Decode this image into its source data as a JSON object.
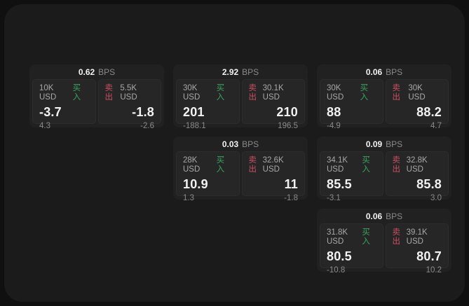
{
  "theme": {
    "outer_bg": "#101010",
    "panel_bg": "#1b1b1b",
    "card_bg": "#212121",
    "tile_bg": "#262626",
    "tile_border": "#2d2d2d",
    "text_primary": "#f2f2f2",
    "text_secondary": "#a8a8a8",
    "text_dim": "#8a8a8a",
    "buy_color": "#3aa560",
    "sell_color": "#cc4f63"
  },
  "labels": {
    "bps_unit": "BPS",
    "buy": "买入",
    "sell": "卖出"
  },
  "cards": [
    {
      "bps": "0.62",
      "buy": {
        "size": "10K USD",
        "value": "-3.7",
        "sub": "4.3"
      },
      "sell": {
        "size": "5.5K USD",
        "value": "-1.8",
        "sub": "-2.6"
      }
    },
    {
      "bps": "2.92",
      "buy": {
        "size": "30K USD",
        "value": "201",
        "sub": "-188.1"
      },
      "sell": {
        "size": "30.1K USD",
        "value": "210",
        "sub": "196.5"
      }
    },
    {
      "bps": "0.06",
      "buy": {
        "size": "30K USD",
        "value": "88",
        "sub": "-4.9"
      },
      "sell": {
        "size": "30K USD",
        "value": "88.2",
        "sub": "4.7"
      }
    },
    {
      "bps": "0.03",
      "buy": {
        "size": "28K USD",
        "value": "10.9",
        "sub": "1.3"
      },
      "sell": {
        "size": "32.6K USD",
        "value": "11",
        "sub": "-1.8"
      }
    },
    {
      "bps": "0.09",
      "buy": {
        "size": "34.1K USD",
        "value": "85.5",
        "sub": "-3.1"
      },
      "sell": {
        "size": "32.8K USD",
        "value": "85.8",
        "sub": "3.0"
      }
    },
    {
      "bps": "0.06",
      "buy": {
        "size": "31.8K USD",
        "value": "80.5",
        "sub": "-10.8"
      },
      "sell": {
        "size": "39.1K USD",
        "value": "80.7",
        "sub": "10.2"
      }
    }
  ]
}
